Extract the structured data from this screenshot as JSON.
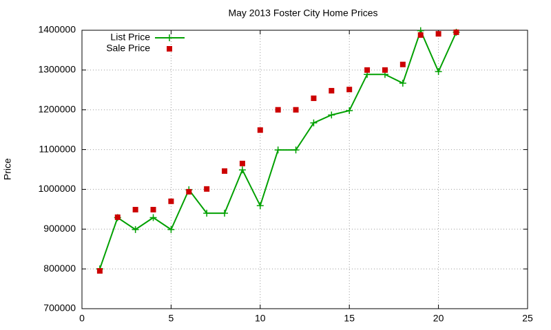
{
  "chart_data": {
    "type": "line",
    "title": "May 2013 Foster City Home Prices",
    "y_label": "Price",
    "x": [
      1,
      2,
      3,
      4,
      5,
      6,
      7,
      8,
      9,
      10,
      11,
      12,
      13,
      14,
      15,
      16,
      17,
      18,
      19,
      20,
      21
    ],
    "series": [
      {
        "name": "List Price",
        "color": "#00a000",
        "style": "linespoints",
        "values": [
          800000,
          929000,
          899000,
          929000,
          899000,
          999000,
          940000,
          940000,
          1049000,
          959000,
          1099000,
          1099000,
          1167000,
          1187000,
          1198000,
          1289000,
          1289000,
          1267000,
          1399000,
          1296000,
          1395000
        ]
      },
      {
        "name": "Sale Price",
        "color": "#cc0000",
        "style": "points",
        "values": [
          795000,
          930000,
          949000,
          949000,
          970000,
          994000,
          1001000,
          1046000,
          1065000,
          1149000,
          1200000,
          1200000,
          1229000,
          1248000,
          1251000,
          1300000,
          1300000,
          1314000,
          1388000,
          1391000,
          1395000
        ]
      }
    ],
    "xlim": [
      0,
      25
    ],
    "xticks": [
      0,
      5,
      10,
      15,
      20,
      25
    ],
    "ylim": [
      700000,
      1400000
    ],
    "yticks": [
      700000,
      800000,
      900000,
      1000000,
      1100000,
      1200000,
      1300000,
      1400000
    ],
    "grid": true,
    "legend": "top-left"
  }
}
